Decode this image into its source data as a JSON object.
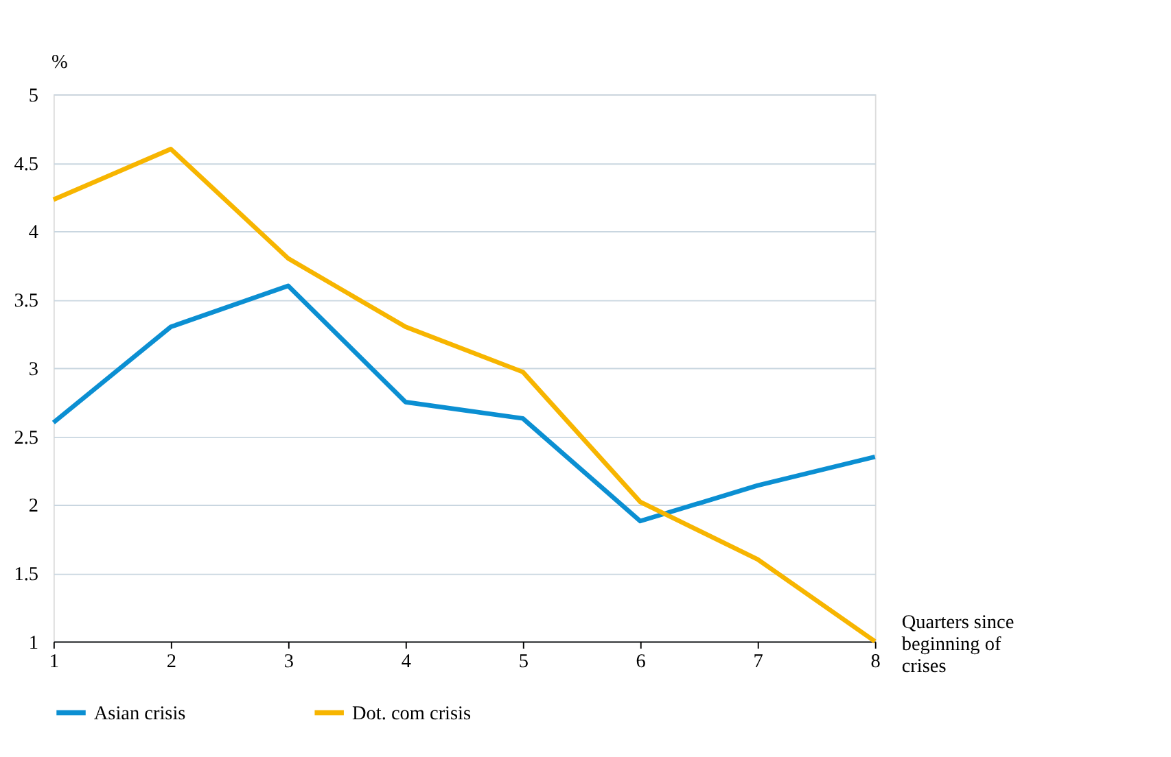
{
  "chart_data": {
    "type": "line",
    "ylabel": "%",
    "xlabel": "Quarters since beginning of crises",
    "x": [
      1,
      2,
      3,
      4,
      5,
      6,
      7,
      8
    ],
    "series": [
      {
        "name": "Asian crisis",
        "color": "#0b8fd2",
        "values": [
          2.6,
          3.3,
          3.6,
          2.75,
          2.63,
          1.88,
          2.14,
          2.35
        ]
      },
      {
        "name": "Dot. com crisis",
        "color": "#f7b500",
        "values": [
          4.23,
          4.6,
          3.8,
          3.3,
          2.97,
          2.02,
          1.6,
          1.0
        ]
      }
    ],
    "xlim": [
      1,
      8
    ],
    "xticks": [
      1,
      2,
      3,
      4,
      5,
      6,
      7,
      8
    ],
    "ylim": [
      1,
      5
    ],
    "yticks": [
      1,
      1.5,
      2,
      2.5,
      3,
      3.5,
      4,
      4.5,
      5
    ],
    "grid": "y",
    "legend": "bottom",
    "marker": "none",
    "line_style": "solid"
  }
}
